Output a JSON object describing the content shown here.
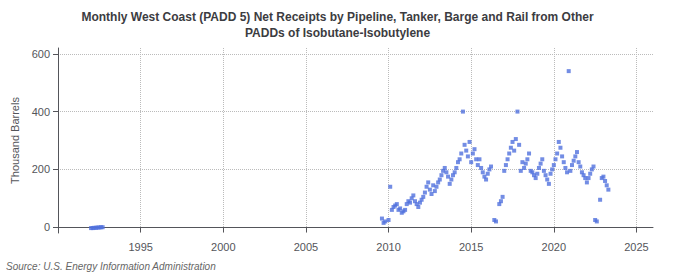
{
  "chart_data": {
    "type": "scatter",
    "title": "Monthly West Coast (PADD 5) Net Receipts by Pipeline, Tanker, Barge and Rail from Other\nPADDs of Isobutane-Isobutylene",
    "ylabel": "Thousand Barrels",
    "annotations": [
      "Source: U.S. Energy Information Administration"
    ],
    "marker": "square",
    "grid": true,
    "xlim": [
      1990,
      2026
    ],
    "ylim": [
      -20,
      620
    ],
    "xticks": [
      1995,
      2000,
      2005,
      2010,
      2015,
      2020,
      2025
    ],
    "yticks": [
      0,
      200,
      400,
      600
    ],
    "x": [
      1992.0,
      1992.1,
      1992.2,
      1992.3,
      1992.4,
      1992.5,
      1992.6,
      1992.7,
      2009.6,
      2009.7,
      2009.8,
      2010.0,
      2010.1,
      2010.2,
      2010.3,
      2010.4,
      2010.5,
      2010.6,
      2010.7,
      2010.8,
      2010.9,
      2011.0,
      2011.1,
      2011.2,
      2011.3,
      2011.4,
      2011.5,
      2011.6,
      2011.7,
      2011.8,
      2011.9,
      2012.0,
      2012.1,
      2012.2,
      2012.3,
      2012.4,
      2012.5,
      2012.6,
      2012.7,
      2012.8,
      2012.9,
      2013.0,
      2013.1,
      2013.2,
      2013.3,
      2013.4,
      2013.5,
      2013.6,
      2013.7,
      2013.8,
      2013.9,
      2014.0,
      2014.1,
      2014.2,
      2014.3,
      2014.4,
      2014.5,
      2014.6,
      2014.7,
      2014.8,
      2014.9,
      2015.0,
      2015.1,
      2015.2,
      2015.3,
      2015.4,
      2015.5,
      2015.6,
      2015.7,
      2015.8,
      2015.9,
      2016.0,
      2016.1,
      2016.2,
      2016.4,
      2016.5,
      2016.7,
      2016.8,
      2016.9,
      2017.0,
      2017.1,
      2017.2,
      2017.3,
      2017.4,
      2017.5,
      2017.6,
      2017.7,
      2017.8,
      2017.9,
      2018.0,
      2018.1,
      2018.2,
      2018.3,
      2018.4,
      2018.5,
      2018.6,
      2018.7,
      2018.8,
      2018.9,
      2019.0,
      2019.1,
      2019.2,
      2019.3,
      2019.4,
      2019.5,
      2019.6,
      2019.7,
      2019.8,
      2019.9,
      2020.0,
      2020.1,
      2020.2,
      2020.3,
      2020.4,
      2020.5,
      2020.6,
      2020.7,
      2020.8,
      2020.9,
      2021.0,
      2021.1,
      2021.2,
      2021.3,
      2021.4,
      2021.5,
      2021.6,
      2021.7,
      2021.8,
      2021.9,
      2022.0,
      2022.1,
      2022.2,
      2022.3,
      2022.4,
      2022.5,
      2022.6,
      2022.8,
      2022.9,
      2023.0,
      2023.1,
      2023.2,
      2023.3
    ],
    "values": [
      -3,
      -3,
      -2,
      -2,
      -1,
      -1,
      0,
      0,
      30,
      15,
      20,
      25,
      140,
      60,
      70,
      75,
      80,
      60,
      65,
      50,
      55,
      60,
      80,
      90,
      85,
      100,
      110,
      90,
      80,
      70,
      85,
      95,
      105,
      120,
      140,
      155,
      130,
      115,
      145,
      125,
      140,
      155,
      165,
      180,
      195,
      205,
      190,
      175,
      150,
      165,
      180,
      190,
      205,
      225,
      235,
      255,
      400,
      285,
      265,
      245,
      295,
      225,
      255,
      270,
      235,
      215,
      235,
      205,
      190,
      175,
      165,
      185,
      200,
      210,
      25,
      20,
      80,
      90,
      105,
      195,
      215,
      235,
      255,
      275,
      295,
      265,
      305,
      400,
      285,
      195,
      225,
      205,
      220,
      235,
      255,
      195,
      190,
      180,
      170,
      185,
      205,
      220,
      235,
      195,
      180,
      165,
      150,
      185,
      200,
      215,
      235,
      255,
      295,
      275,
      245,
      225,
      205,
      190,
      540,
      195,
      215,
      230,
      245,
      260,
      225,
      210,
      190,
      180,
      170,
      155,
      170,
      185,
      200,
      210,
      25,
      20,
      95,
      170,
      175,
      160,
      145,
      130
    ]
  }
}
